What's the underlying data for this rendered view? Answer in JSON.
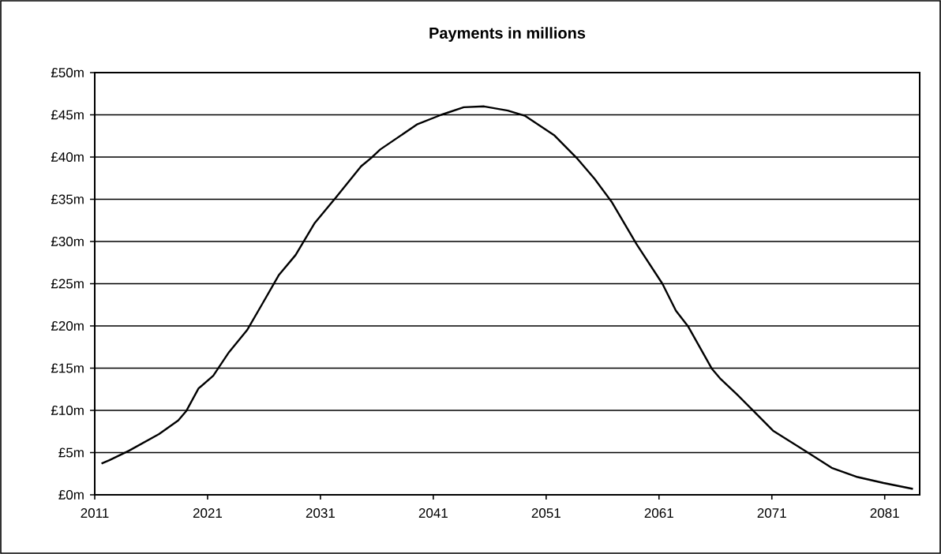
{
  "chart_data": {
    "type": "line",
    "title": "Payments in millions",
    "x": [
      2011.6,
      2012.3,
      2014,
      2016.7,
      2018.4,
      2019.1,
      2020.2,
      2021.5,
      2022.9,
      2024.5,
      2025.8,
      2027.3,
      2028.8,
      2030.5,
      2032.3,
      2034.6,
      2035.5,
      2036.3,
      2039.6,
      2041.7,
      2043.7,
      2045.5,
      2047.6,
      2049.1,
      2051.7,
      2053.7,
      2055.3,
      2056.8,
      2059.0,
      2061.3,
      2062.5,
      2063.6,
      2065.7,
      2066.4,
      2067.9,
      2069.4,
      2071.1,
      2074.3,
      2076.3,
      2078.6,
      2080.9,
      2083.5
    ],
    "series": [
      {
        "color": "#000000",
        "values": [
          3.7,
          4.1,
          5.2,
          7.2,
          8.8,
          9.9,
          12.6,
          14.1,
          16.9,
          19.5,
          22.5,
          26.0,
          28.4,
          32.2,
          35.1,
          38.9,
          39.9,
          40.9,
          43.9,
          45.0,
          45.9,
          46.0,
          45.5,
          44.9,
          42.6,
          39.9,
          37.4,
          34.7,
          29.7,
          25.0,
          21.8,
          19.9,
          14.9,
          13.8,
          11.9,
          9.9,
          7.6,
          4.9,
          3.2,
          2.1,
          1.4,
          0.7
        ]
      }
    ],
    "xlim": [
      2011,
      2084.1
    ],
    "xticks": [
      2011,
      2021,
      2031,
      2041,
      2051,
      2061,
      2071,
      2081
    ],
    "ylim": [
      0,
      50
    ],
    "yticks": [
      {
        "value": 0,
        "label": "£0m"
      },
      {
        "value": 5,
        "label": "£5m"
      },
      {
        "value": 10,
        "label": "£10m"
      },
      {
        "value": 15,
        "label": "£15m"
      },
      {
        "value": 20,
        "label": "£20m"
      },
      {
        "value": 25,
        "label": "£25m"
      },
      {
        "value": 30,
        "label": "£30m"
      },
      {
        "value": 35,
        "label": "£35m"
      },
      {
        "value": 40,
        "label": "£40m"
      },
      {
        "value": 45,
        "label": "£45m"
      },
      {
        "value": 50,
        "label": "£50m"
      }
    ],
    "grid": "y",
    "marker": "none",
    "line_style": "solid"
  }
}
